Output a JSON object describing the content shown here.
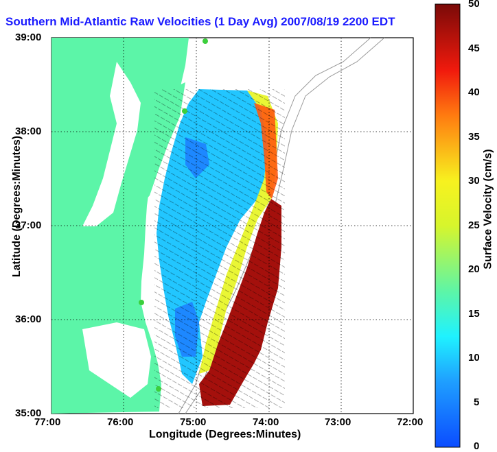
{
  "title": "Southern Mid-Atlantic Raw Velocities (1 Day Avg) 2007/08/19 2200 EDT",
  "axes": {
    "xlabel": "Longitude (Degrees:Minutes)",
    "ylabel": "Latitude (Degrees:Minutes)",
    "x_ticks": [
      "77:00",
      "76:00",
      "75:00",
      "74:00",
      "73:00",
      "72:00"
    ],
    "y_ticks": [
      "39:00",
      "38:00",
      "37:00",
      "36:00",
      "35:00"
    ]
  },
  "colorbar": {
    "label": "Surface Velocity (cm/s)",
    "ticks": [
      "0",
      "5",
      "10",
      "15",
      "20",
      "25",
      "30",
      "35",
      "40",
      "45",
      "50"
    ],
    "min": 0,
    "max": 50
  },
  "colors": {
    "land": "#5cf5a8",
    "title": "#1a1aff"
  }
}
